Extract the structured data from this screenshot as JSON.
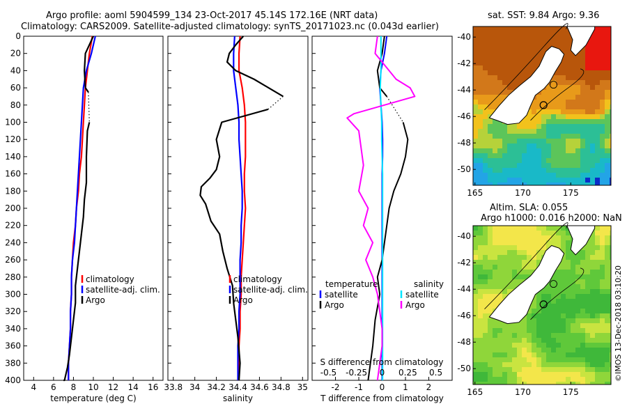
{
  "header": {
    "title_line1": "Argo profile: aoml 5904599_134 23-Oct-2017 45.14S 172.16E (NRT data)",
    "title_line2": "Climatology: CARS2009. Satellite-adjusted climatology: synTS_20171023.nc (0.043d earlier)"
  },
  "colors": {
    "climatology": "#ff0000",
    "satellite": "#0000ff",
    "argo": "#000000",
    "t_sat": "#00e5ff",
    "s_argo": "#ff00ff"
  },
  "chart_data": [
    {
      "id": "temperature",
      "type": "line",
      "xlabel": "temperature (deg C)",
      "ylabel": "",
      "xlim": [
        3,
        17
      ],
      "ylim": [
        400,
        0
      ],
      "xticks": [
        "4",
        "6",
        "8",
        "10",
        "12",
        "14",
        "16"
      ],
      "xtick_values": [
        4,
        6,
        8,
        10,
        12,
        14,
        16
      ],
      "yticks": [
        "0",
        "20",
        "40",
        "60",
        "80",
        "100",
        "120",
        "140",
        "160",
        "180",
        "200",
        "220",
        "240",
        "260",
        "280",
        "300",
        "320",
        "340",
        "360",
        "380",
        "400"
      ],
      "ytick_values": [
        0,
        20,
        40,
        60,
        80,
        100,
        120,
        140,
        160,
        180,
        200,
        220,
        240,
        260,
        280,
        300,
        320,
        340,
        360,
        380,
        400
      ],
      "legend": [
        "climatology",
        "satellite-adj. clim.",
        "Argo"
      ],
      "series": [
        {
          "name": "climatology",
          "color": "#ff0000",
          "width": 2.2,
          "x": [
            9.9,
            9.6,
            9.4,
            9.2,
            9.1,
            9.0,
            8.9,
            8.8,
            8.6,
            8.5,
            8.3,
            8.2,
            8.0,
            7.9,
            7.8,
            7.8,
            7.7,
            7.7,
            7.6,
            7.5,
            7.5
          ],
          "y": [
            0,
            20,
            40,
            60,
            80,
            100,
            120,
            140,
            160,
            180,
            200,
            220,
            240,
            260,
            280,
            300,
            320,
            340,
            360,
            380,
            400
          ]
        },
        {
          "name": "satellite-adj. clim.",
          "color": "#0000ff",
          "width": 2.2,
          "x": [
            10.2,
            9.8,
            9.3,
            9.0,
            8.9,
            8.8,
            8.7,
            8.6,
            8.5,
            8.4,
            8.3,
            8.2,
            8.1,
            7.9,
            7.8,
            7.8,
            7.7,
            7.7,
            7.6,
            7.5,
            7.5
          ],
          "y": [
            0,
            20,
            40,
            60,
            80,
            100,
            120,
            140,
            160,
            180,
            200,
            220,
            240,
            260,
            280,
            300,
            320,
            340,
            360,
            380,
            400
          ]
        },
        {
          "name": "Argo",
          "color": "#000000",
          "width": 2.2,
          "x": [
            10.0,
            9.6,
            9.2,
            9.1,
            9.2,
            9.5,
            9.6,
            9.4,
            9.3,
            9.3,
            9.1,
            9.0,
            8.8,
            8.6,
            8.4,
            8.2,
            8.2,
            8.0,
            7.8,
            7.6,
            7.4,
            7.2,
            7.1,
            7.0
          ],
          "y": [
            0,
            10,
            20,
            40,
            60,
            65,
            100,
            110,
            140,
            170,
            190,
            210,
            230,
            250,
            270,
            290,
            310,
            330,
            350,
            370,
            385,
            395,
            400,
            400
          ],
          "gap": [
            65,
            100
          ]
        }
      ]
    },
    {
      "id": "salinity",
      "type": "line",
      "xlabel": "salinity",
      "xlim": [
        33.75,
        35.05
      ],
      "ylim": [
        400,
        0
      ],
      "xticks": [
        "33.8",
        "34",
        "34.2",
        "34.4",
        "34.6",
        "34.8",
        "35"
      ],
      "xtick_values": [
        33.8,
        34,
        34.2,
        34.4,
        34.6,
        34.8,
        35
      ],
      "legend": [
        "climatology",
        "satellite-adj. clim.",
        "Argo"
      ],
      "series": [
        {
          "name": "climatology",
          "color": "#ff0000",
          "width": 2.2,
          "x": [
            34.42,
            34.41,
            34.41,
            34.44,
            34.46,
            34.47,
            34.47,
            34.47,
            34.46,
            34.46,
            34.47,
            34.46,
            34.45,
            34.44,
            34.43,
            34.43,
            34.42,
            34.42,
            34.41,
            34.41,
            34.4
          ],
          "y": [
            0,
            20,
            40,
            60,
            80,
            100,
            120,
            140,
            160,
            180,
            200,
            220,
            240,
            260,
            280,
            300,
            320,
            340,
            360,
            380,
            400
          ]
        },
        {
          "name": "satellite-adj. clim.",
          "color": "#0000ff",
          "width": 2.2,
          "x": [
            34.37,
            34.36,
            34.36,
            34.38,
            34.4,
            34.41,
            34.41,
            34.42,
            34.43,
            34.44,
            34.44,
            34.43,
            34.43,
            34.42,
            34.42,
            34.42,
            34.41,
            34.41,
            34.4,
            34.4,
            34.4
          ],
          "y": [
            0,
            20,
            40,
            60,
            80,
            100,
            120,
            140,
            160,
            180,
            200,
            220,
            240,
            260,
            280,
            300,
            320,
            340,
            360,
            380,
            400
          ]
        },
        {
          "name": "Argo",
          "color": "#000000",
          "width": 2.2,
          "x": [
            34.45,
            34.38,
            34.32,
            34.3,
            34.38,
            34.55,
            34.82,
            34.68,
            34.25,
            34.2,
            34.23,
            34.2,
            34.14,
            34.06,
            34.05,
            34.1,
            34.15,
            34.23,
            34.26,
            34.3,
            34.35,
            34.36,
            34.38,
            34.4,
            34.42,
            34.41
          ],
          "y": [
            0,
            10,
            20,
            30,
            40,
            50,
            70,
            85,
            100,
            120,
            140,
            155,
            165,
            175,
            185,
            195,
            215,
            230,
            250,
            270,
            290,
            310,
            330,
            350,
            380,
            400
          ],
          "gap": [
            70,
            100
          ]
        }
      ]
    },
    {
      "id": "difference",
      "type": "line",
      "xlabel": "T difference from climatology",
      "xlabel_top": "S difference from climatology",
      "xlim": [
        -3,
        3
      ],
      "ylim": [
        400,
        0
      ],
      "xticks": [
        "-2",
        "-1",
        "0",
        "1",
        "2"
      ],
      "xtick_values": [
        -2,
        -1,
        0,
        1,
        2
      ],
      "xticks_top": [
        "-0.5",
        "-0.25",
        "0",
        "0.25",
        "0.5"
      ],
      "xticks_top_values": [
        -0.5,
        -0.25,
        0,
        0.25,
        0.5
      ],
      "legend_left_title": "temperature",
      "legend_right_title": "salinity",
      "legend": [
        "satellite",
        "Argo",
        "satellite",
        "Argo"
      ],
      "series": [
        {
          "name": "T satellite",
          "color": "#0000ff",
          "width": 2,
          "x": [
            0.2,
            0.1,
            -0.05,
            -0.1,
            -0.05,
            0,
            0.02,
            0.02,
            0.0,
            0.0,
            0.0,
            0.0,
            0.0,
            0.0,
            0.0,
            0.0,
            0.0,
            0.0,
            0.0,
            0.0,
            0.0
          ],
          "y": [
            0,
            20,
            40,
            60,
            80,
            100,
            120,
            140,
            160,
            180,
            200,
            220,
            240,
            260,
            280,
            300,
            320,
            340,
            360,
            380,
            400
          ]
        },
        {
          "name": "T Argo",
          "color": "#000000",
          "width": 2,
          "x": [
            0.1,
            0,
            -0.2,
            -0.1,
            0.2,
            0.9,
            1.1,
            1.0,
            0.8,
            0.5,
            0.3,
            0.2,
            0.1,
            0.0,
            -0.2,
            -0.1,
            -0.3,
            -0.4,
            -0.5,
            -0.6
          ],
          "y": [
            0,
            20,
            40,
            60,
            70,
            100,
            120,
            140,
            160,
            180,
            200,
            220,
            240,
            260,
            280,
            300,
            330,
            360,
            380,
            400
          ],
          "gap": [
            70,
            100
          ]
        },
        {
          "name": "S satellite",
          "color": "#00e5ff",
          "width": 2,
          "x": [
            -0.05,
            -0.05,
            -0.05,
            -0.08,
            -0.05,
            -0.02,
            -0.02,
            0,
            0.02,
            0.02,
            0.02,
            0.02,
            0.02,
            0.02,
            0.02,
            0.02,
            0.02,
            0.02,
            0.02,
            0.02,
            0.02
          ],
          "y": [
            0,
            20,
            40,
            60,
            80,
            100,
            120,
            140,
            160,
            180,
            200,
            220,
            240,
            260,
            280,
            300,
            320,
            340,
            360,
            380,
            400
          ]
        },
        {
          "name": "S Argo",
          "color": "#ff00ff",
          "width": 2,
          "x": [
            -0.2,
            -0.3,
            0.6,
            1.2,
            1.4,
            -1.2,
            -1.5,
            -1.0,
            -0.8,
            -1.0,
            -0.6,
            -0.8,
            -0.4,
            -0.7,
            -0.4,
            -0.3,
            -0.2,
            -0.1,
            0.0,
            0.0,
            -0.2
          ],
          "y": [
            0,
            20,
            50,
            60,
            70,
            90,
            95,
            110,
            150,
            180,
            200,
            220,
            240,
            260,
            280,
            290,
            300,
            320,
            340,
            360,
            400
          ]
        }
      ]
    }
  ],
  "maps": {
    "sst": {
      "title": "sat. SST: 9.84 Argo: 9.36",
      "xticks": [
        "165",
        "170",
        "175"
      ],
      "yticks": [
        "-40",
        "-42",
        "-44",
        "-46",
        "-48",
        "-50"
      ]
    },
    "sla": {
      "title_line1": "Altim. SLA: 0.055",
      "title_line2": "Argo h1000: 0.016 h2000: NaN",
      "xticks": [
        "165",
        "170",
        "175"
      ],
      "yticks": [
        "-40",
        "-42",
        "-44",
        "-46",
        "-48",
        "-50"
      ]
    }
  },
  "credit": "©IMOS 13-Dec-2018 03:10:20"
}
